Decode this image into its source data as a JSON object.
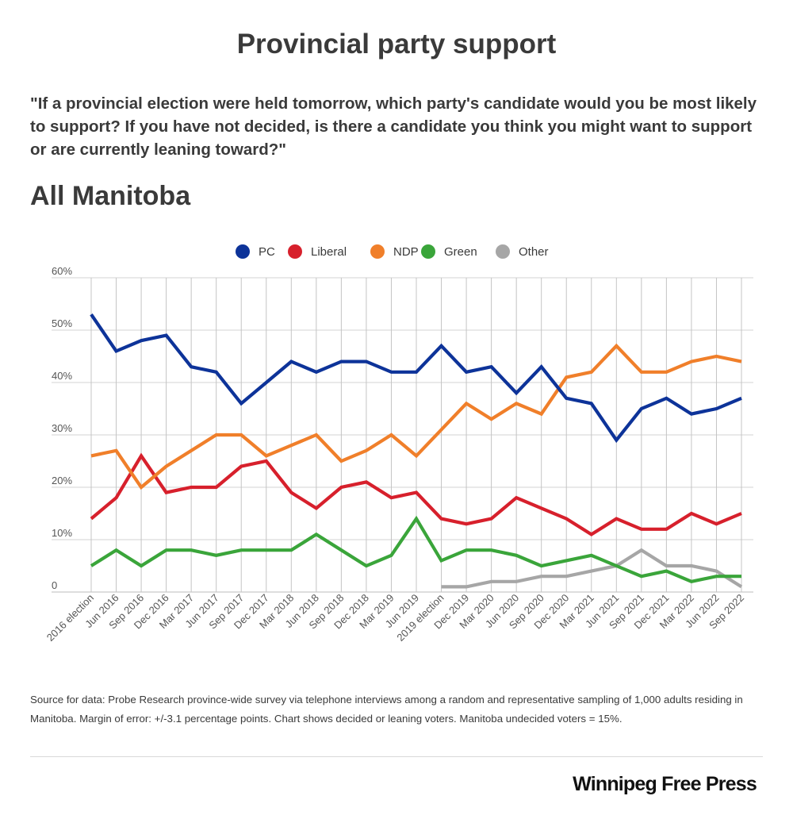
{
  "header": {
    "title": "Provincial party support",
    "question": "\"If a provincial election were held tomorrow, which party's candidate would you be most likely to support? If you have not decided, is there a candidate you think you might want to support or are currently leaning toward?\"",
    "subtitle": "All Manitoba"
  },
  "footer": {
    "source": "Source for data:  Probe Research province-wide survey via telephone interviews among a random and representative sampling of 1,000 adults residing in Manitoba.  Margin of error: +/-3.1 percentage points. Chart shows decided or leaning voters. Manitoba undecided voters = 15%.",
    "brand": "Winnipeg Free Press"
  },
  "chart_data": {
    "type": "line",
    "title": "All Manitoba",
    "xlabel": "",
    "ylabel": "",
    "ylim": [
      0,
      60
    ],
    "yticks": [
      {
        "value": 0,
        "label": "0"
      },
      {
        "value": 10,
        "label": "10%"
      },
      {
        "value": 20,
        "label": "20%"
      },
      {
        "value": 30,
        "label": "30%"
      },
      {
        "value": 40,
        "label": "40%"
      },
      {
        "value": 50,
        "label": "50%"
      },
      {
        "value": 60,
        "label": "60%"
      }
    ],
    "grid": true,
    "legend_position": "top-center",
    "categories": [
      "2016 election",
      "Jun 2016",
      "Sep 2016",
      "Dec 2016",
      "Mar 2017",
      "Jun 2017",
      "Sep 2017",
      "Dec 2017",
      "Mar 2018",
      "Jun 2018",
      "Sep 2018",
      "Dec 2018",
      "Mar 2019",
      "Jun 2019",
      "2019 election",
      "Dec 2019",
      "Mar 2020",
      "Jun 2020",
      "Sep 2020",
      "Dec 2020",
      "Mar 2021",
      "Jun 2021",
      "Sep 2021",
      "Dec 2021",
      "Mar 2022",
      "Jun 2022",
      "Sep 2022"
    ],
    "series": [
      {
        "name": "PC",
        "color": "#0d3399",
        "values": [
          53,
          46,
          48,
          49,
          43,
          42,
          36,
          40,
          44,
          42,
          44,
          44,
          42,
          42,
          47,
          42,
          43,
          38,
          43,
          37,
          36,
          29,
          35,
          37,
          34,
          35,
          37
        ]
      },
      {
        "name": "Liberal",
        "color": "#d7202c",
        "values": [
          14,
          18,
          26,
          19,
          20,
          20,
          24,
          25,
          19,
          16,
          20,
          21,
          18,
          19,
          14,
          13,
          14,
          18,
          16,
          14,
          11,
          14,
          12,
          12,
          15,
          13,
          15
        ]
      },
      {
        "name": "NDP",
        "color": "#f07f2a",
        "values": [
          26,
          27,
          20,
          24,
          27,
          30,
          30,
          26,
          28,
          30,
          25,
          27,
          30,
          26,
          31,
          36,
          33,
          36,
          34,
          41,
          42,
          47,
          42,
          42,
          44,
          45,
          44
        ]
      },
      {
        "name": "Green",
        "color": "#3aa53a",
        "values": [
          5,
          8,
          5,
          8,
          8,
          7,
          8,
          8,
          8,
          11,
          8,
          5,
          7,
          14,
          6,
          8,
          8,
          7,
          5,
          6,
          7,
          5,
          3,
          4,
          2,
          3,
          3
        ]
      },
      {
        "name": "Other",
        "color": "#a6a6a6",
        "values": [
          null,
          null,
          null,
          null,
          null,
          null,
          null,
          null,
          null,
          null,
          null,
          null,
          null,
          null,
          1,
          1,
          2,
          2,
          3,
          3,
          4,
          5,
          8,
          5,
          5,
          4,
          1
        ]
      }
    ]
  }
}
